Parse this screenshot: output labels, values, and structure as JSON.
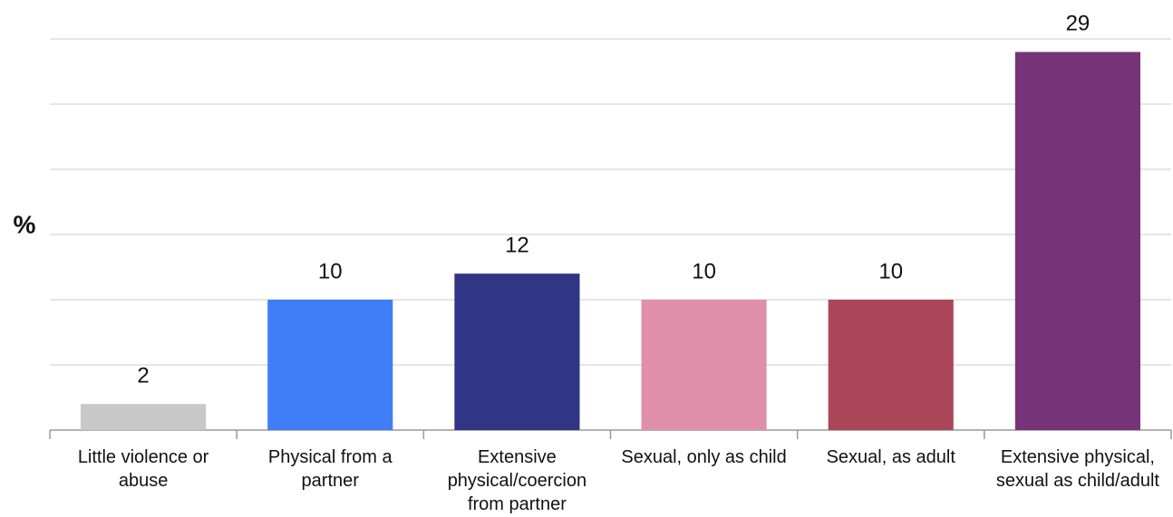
{
  "chart_data": {
    "type": "bar",
    "y_label": "%",
    "categories": [
      "Little violence or abuse",
      "Physical from a partner",
      "Extensive physical/coercion from partner",
      "Sexual, only as child",
      "Sexual, as adult",
      "Extensive physical, sexual as child/adult"
    ],
    "values": [
      2,
      10,
      12,
      10,
      10,
      29
    ],
    "colors": [
      "#c8c8c8",
      "#3f7ef6",
      "#313585",
      "#e08fab",
      "#ab4659",
      "#773377"
    ],
    "ylim": [
      0,
      30
    ],
    "yticks": [
      0,
      5,
      10,
      15,
      20,
      25,
      30
    ],
    "grid": true
  }
}
